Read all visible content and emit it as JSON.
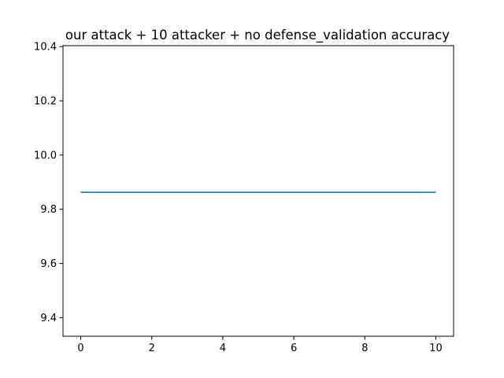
{
  "chart_data": {
    "type": "line",
    "title": "our attack + 10 attacker + no defense_validation accuracy",
    "xlabel": "",
    "ylabel": "",
    "xlim": [
      -0.5,
      10.5
    ],
    "ylim": [
      9.3315,
      10.4035
    ],
    "x_ticks": [
      0,
      2,
      4,
      6,
      8,
      10
    ],
    "x_tick_labels": [
      "0",
      "2",
      "4",
      "6",
      "8",
      "10"
    ],
    "y_ticks": [
      9.4,
      9.6,
      9.8,
      10.0,
      10.2,
      10.4
    ],
    "y_tick_labels": [
      "9.4",
      "9.6",
      "9.8",
      "10.0",
      "10.2",
      "10.4"
    ],
    "grid": false,
    "legend": "none",
    "series": [
      {
        "color": "#1f77b4",
        "x": [
          0,
          1,
          2,
          3,
          4,
          5,
          6,
          7,
          8,
          9,
          10
        ],
        "y": [
          9.8625,
          9.8625,
          9.8625,
          9.8625,
          9.8625,
          9.8625,
          9.8625,
          9.8625,
          9.8625,
          9.8625,
          9.8625
        ]
      }
    ]
  }
}
